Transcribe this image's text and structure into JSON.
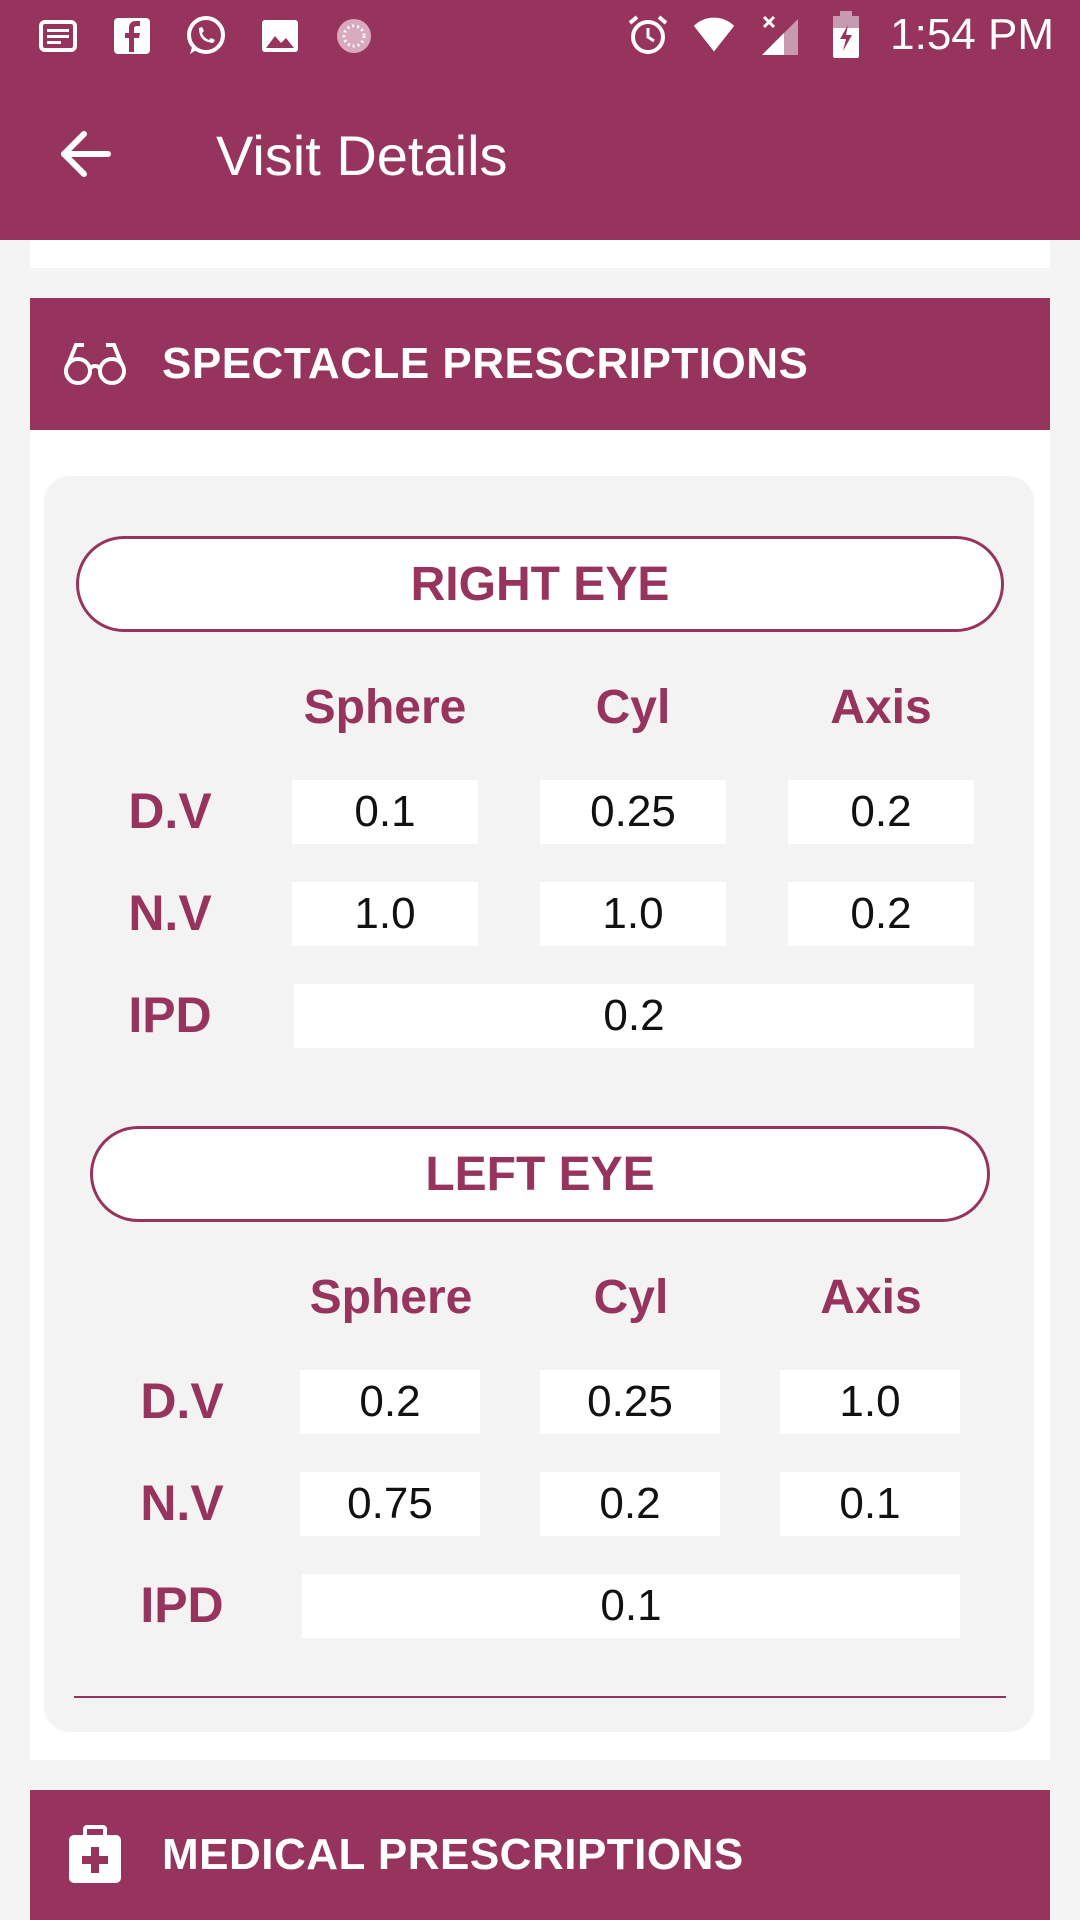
{
  "status_bar": {
    "time": "1:54 PM",
    "left_icons": [
      "news-icon",
      "facebook-icon",
      "whatsapp-icon",
      "image-icon",
      "loading-icon"
    ],
    "right_icons": [
      "alarm-icon",
      "wifi-icon",
      "signal-icon",
      "battery-icon"
    ]
  },
  "app_bar": {
    "title": "Visit Details"
  },
  "spectacle": {
    "header": "SPECTACLE PRESCRIPTIONS",
    "right_eye": {
      "title": "RIGHT EYE",
      "columns": [
        "Sphere",
        "Cyl",
        "Axis"
      ],
      "dv_label": "D.V",
      "nv_label": "N.V",
      "ipd_label": "IPD",
      "dv": [
        "0.1",
        "0.25",
        "0.2"
      ],
      "nv": [
        "1.0",
        "1.0",
        "0.2"
      ],
      "ipd": "0.2"
    },
    "left_eye": {
      "title": "LEFT EYE",
      "columns": [
        "Sphere",
        "Cyl",
        "Axis"
      ],
      "dv_label": "D.V",
      "nv_label": "N.V",
      "ipd_label": "IPD",
      "dv": [
        "0.2",
        "0.25",
        "1.0"
      ],
      "nv": [
        "0.75",
        "0.2",
        "0.1"
      ],
      "ipd": "0.1"
    }
  },
  "medical": {
    "header": "MEDICAL PRESCRIPTIONS"
  },
  "colors": {
    "primary": "#96345d",
    "background": "#f4f4f4",
    "card": "#f3f3f3"
  }
}
